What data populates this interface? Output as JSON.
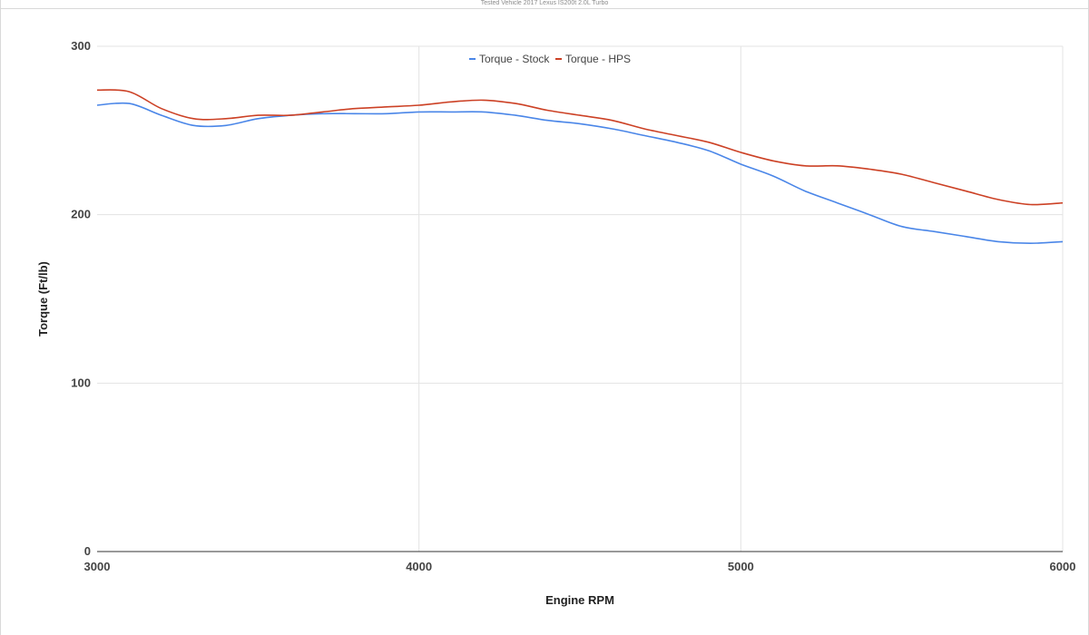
{
  "subtitle": "Tested Vehicle 2017 Lexus IS200t 2.0L Turbo",
  "chart_data": {
    "type": "line",
    "title": "",
    "xlabel": "Engine RPM",
    "ylabel": "Torque (Ft/lb)",
    "xlim": [
      3000,
      6000
    ],
    "ylim": [
      0,
      300
    ],
    "x_ticks": [
      "3000",
      "4000",
      "5000",
      "6000"
    ],
    "y_ticks": [
      "0",
      "100",
      "200",
      "300"
    ],
    "grid": true,
    "legend_position": "top-center",
    "series": [
      {
        "name": "Torque - Stock",
        "color": "#4a86e8",
        "points": [
          [
            3000,
            265
          ],
          [
            3100,
            266
          ],
          [
            3200,
            259
          ],
          [
            3300,
            253
          ],
          [
            3400,
            253
          ],
          [
            3500,
            257
          ],
          [
            3600,
            259
          ],
          [
            3700,
            260
          ],
          [
            3800,
            260
          ],
          [
            3900,
            260
          ],
          [
            4000,
            261
          ],
          [
            4100,
            261
          ],
          [
            4200,
            261
          ],
          [
            4300,
            259
          ],
          [
            4400,
            256
          ],
          [
            4500,
            254
          ],
          [
            4600,
            251
          ],
          [
            4700,
            247
          ],
          [
            4800,
            243
          ],
          [
            4900,
            238
          ],
          [
            5000,
            230
          ],
          [
            5100,
            223
          ],
          [
            5200,
            214
          ],
          [
            5300,
            207
          ],
          [
            5400,
            200
          ],
          [
            5500,
            193
          ],
          [
            5600,
            190
          ],
          [
            5700,
            187
          ],
          [
            5800,
            184
          ],
          [
            5900,
            183
          ],
          [
            6000,
            184
          ]
        ]
      },
      {
        "name": "Torque - HPS",
        "color": "#cc4125",
        "points": [
          [
            3000,
            274
          ],
          [
            3100,
            273
          ],
          [
            3200,
            263
          ],
          [
            3300,
            257
          ],
          [
            3400,
            257
          ],
          [
            3500,
            259
          ],
          [
            3600,
            259
          ],
          [
            3700,
            261
          ],
          [
            3800,
            263
          ],
          [
            3900,
            264
          ],
          [
            4000,
            265
          ],
          [
            4100,
            267
          ],
          [
            4200,
            268
          ],
          [
            4300,
            266
          ],
          [
            4400,
            262
          ],
          [
            4500,
            259
          ],
          [
            4600,
            256
          ],
          [
            4700,
            251
          ],
          [
            4800,
            247
          ],
          [
            4900,
            243
          ],
          [
            5000,
            237
          ],
          [
            5100,
            232
          ],
          [
            5200,
            229
          ],
          [
            5300,
            229
          ],
          [
            5400,
            227
          ],
          [
            5500,
            224
          ],
          [
            5600,
            219
          ],
          [
            5700,
            214
          ],
          [
            5800,
            209
          ],
          [
            5900,
            206
          ],
          [
            6000,
            207
          ]
        ]
      }
    ]
  }
}
